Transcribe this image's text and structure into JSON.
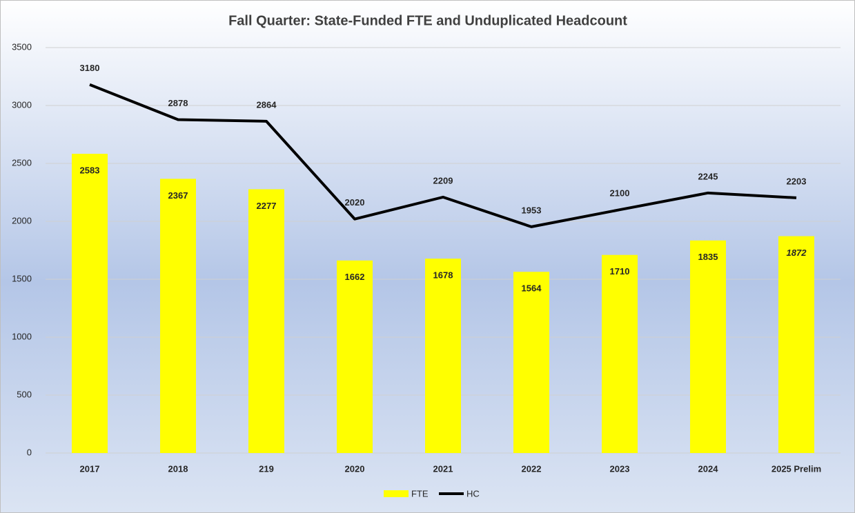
{
  "chart_data": {
    "type": "bar",
    "title": "Fall Quarter: State-Funded FTE and Unduplicated Headcount",
    "categories": [
      "2017",
      "2018",
      "219",
      "2020",
      "2021",
      "2022",
      "2023",
      "2024",
      "2025 Prelim"
    ],
    "series": [
      {
        "name": "FTE",
        "type": "bar",
        "color": "#ffff00",
        "values": [
          2583,
          2367,
          2277,
          1662,
          1678,
          1564,
          1710,
          1835,
          1872
        ]
      },
      {
        "name": "HC",
        "type": "line",
        "color": "#000000",
        "values": [
          3180,
          2878,
          2864,
          2020,
          2209,
          1953,
          2100,
          2245,
          2203
        ]
      }
    ],
    "ylim": [
      0,
      3500
    ],
    "yticks": [
      0,
      500,
      1000,
      1500,
      2000,
      2500,
      3000,
      3500
    ],
    "grid": true,
    "legend": "bottom"
  }
}
